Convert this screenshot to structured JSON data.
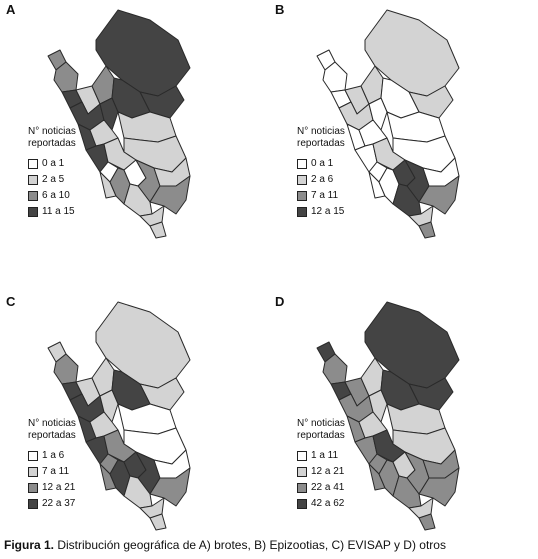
{
  "colors": {
    "level1": "#ffffff",
    "level2": "#d3d3d3",
    "level3": "#8c8c8c",
    "level4": "#444444"
  },
  "panels": [
    {
      "letter": "A",
      "legend_title_line1": "N° noticias",
      "legend_title_line2": "reportadas",
      "legend": [
        "0 a 1",
        "2 a 5",
        "6 a 10",
        "11 a 15"
      ],
      "region_levels": {
        "north_big": 4,
        "north_east": 4,
        "tumbes": 3,
        "piura": 3,
        "lambayeque": 4,
        "cajamarca": 2,
        "amazonas": 3,
        "san_martin": 4,
        "la_libertad": 4,
        "ancash": 4,
        "huanuco": 4,
        "pasco": 2,
        "ucayali_n": 2,
        "ucayali_s": 2,
        "lima": 4,
        "junin": 2,
        "huancavelica": 1,
        "ica": 2,
        "ayacucho": 3,
        "apurimac": 1,
        "cusco": 3,
        "madre_de_dios": 2,
        "puno": 3,
        "arequipa": 2,
        "moquegua": 2,
        "tacna": 2
      }
    },
    {
      "letter": "B",
      "legend_title_line1": "N° noticias",
      "legend_title_line2": "reportadas",
      "legend": [
        "0 a 1",
        "2 a 6",
        "7 a 11",
        "12 a 15"
      ],
      "region_levels": {
        "north_big": 2,
        "north_east": 2,
        "tumbes": 1,
        "piura": 1,
        "lambayeque": 1,
        "cajamarca": 2,
        "amazonas": 2,
        "san_martin": 1,
        "la_libertad": 2,
        "ancash": 1,
        "huanuco": 1,
        "pasco": 1,
        "ucayali_n": 1,
        "ucayali_s": 1,
        "lima": 1,
        "junin": 2,
        "huancavelica": 1,
        "ica": 1,
        "ayacucho": 1,
        "apurimac": 4,
        "cusco": 4,
        "madre_de_dios": 1,
        "puno": 3,
        "arequipa": 4,
        "moquegua": 2,
        "tacna": 3
      }
    },
    {
      "letter": "C",
      "legend_title_line1": "N° noticias",
      "legend_title_line2": "reportadas",
      "legend": [
        "1 a 6",
        "7 a 11",
        "12 a 21",
        "22 a 37"
      ],
      "region_levels": {
        "north_big": 2,
        "north_east": 2,
        "tumbes": 2,
        "piura": 3,
        "lambayeque": 4,
        "cajamarca": 2,
        "amazonas": 2,
        "san_martin": 4,
        "la_libertad": 4,
        "ancash": 4,
        "huanuco": 2,
        "pasco": 2,
        "ucayali_n": 1,
        "ucayali_s": 1,
        "lima": 4,
        "junin": 3,
        "huancavelica": 3,
        "ica": 3,
        "ayacucho": 4,
        "apurimac": 4,
        "cusco": 4,
        "madre_de_dios": 1,
        "puno": 3,
        "arequipa": 2,
        "moquegua": 2,
        "tacna": 2
      }
    },
    {
      "letter": "D",
      "legend_title_line1": "N° noticias",
      "legend_title_line2": "reportadas",
      "legend": [
        "1 a 11",
        "12 a 21",
        "22 a 41",
        "42 a 62"
      ],
      "region_levels": {
        "north_big": 4,
        "north_east": 4,
        "tumbes": 4,
        "piura": 3,
        "lambayeque": 4,
        "cajamarca": 3,
        "amazonas": 2,
        "san_martin": 4,
        "la_libertad": 3,
        "ancash": 3,
        "huanuco": 2,
        "pasco": 2,
        "ucayali_n": 2,
        "ucayali_s": 2,
        "lima": 3,
        "junin": 4,
        "huancavelica": 3,
        "ica": 3,
        "ayacucho": 3,
        "apurimac": 2,
        "cusco": 3,
        "madre_de_dios": 3,
        "puno": 3,
        "arequipa": 3,
        "moquegua": 2,
        "tacna": 3
      }
    }
  ],
  "caption": {
    "label": "Figura 1.",
    "text": " Distribución geográfica de A) brotes, B) Epizootias, C) EVISAP y D) otros"
  }
}
